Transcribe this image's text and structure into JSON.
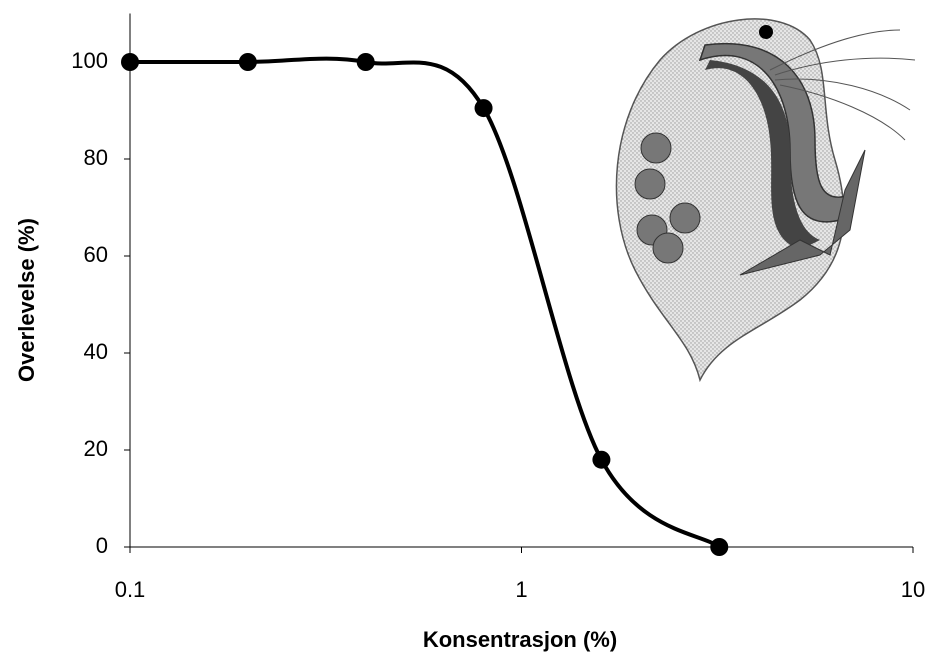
{
  "chart_data": {
    "type": "line",
    "x_label": "Konsentrasjon (%)",
    "y_label": "Overlevelse (%)",
    "x": [
      0.1,
      0.2,
      0.4,
      0.8,
      1.6,
      3.2
    ],
    "values": [
      100,
      100,
      100,
      90.5,
      18,
      0
    ],
    "color": "#000000",
    "x_log": true,
    "xlim": [
      0.1,
      10
    ],
    "xticks": [
      0.1,
      1,
      10
    ],
    "ylim": [
      0,
      110
    ],
    "yticks": [
      0,
      20,
      40,
      60,
      80,
      100
    ],
    "grid": false
  }
}
